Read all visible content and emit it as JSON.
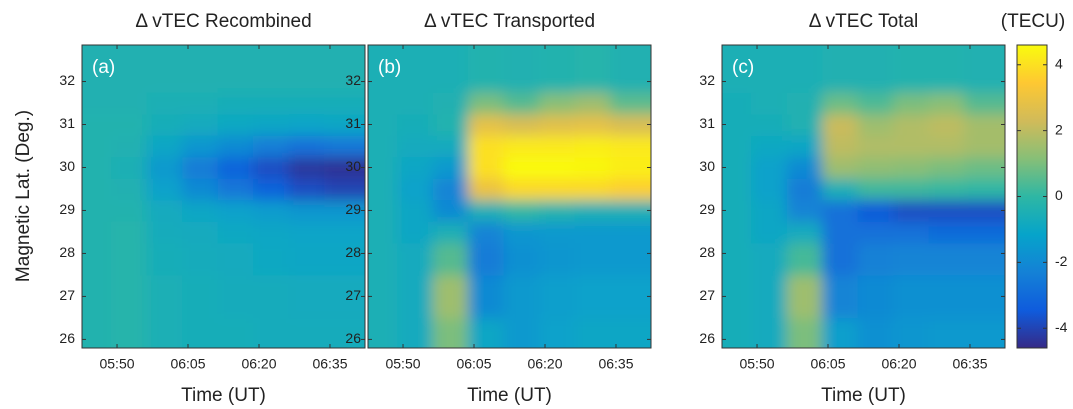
{
  "chart_data": [
    {
      "type": "heatmap",
      "title": "Δ vTEC Recombined",
      "panel_label": "(a)",
      "xlabel": "Time (UT)",
      "ylabel": "Magnetic Lat. (Deg.)",
      "x": [
        345,
        352.5,
        360,
        367.5,
        375,
        382.5,
        390,
        397.5
      ],
      "y": [
        26,
        27,
        28,
        28.5,
        29,
        29.5,
        30,
        30.5,
        31,
        31.5,
        32
      ],
      "z": [
        [
          -0.3,
          -0.2,
          -0.5,
          -0.6,
          -0.6,
          -0.7,
          -0.7,
          -0.7
        ],
        [
          -0.3,
          -0.2,
          -0.5,
          -0.6,
          -0.7,
          -0.7,
          -0.8,
          -0.8
        ],
        [
          -0.3,
          -0.2,
          -0.6,
          -0.7,
          -0.8,
          -0.9,
          -1,
          -1
        ],
        [
          -0.3,
          -0.2,
          -0.7,
          -0.8,
          -0.9,
          -1,
          -1.1,
          -1.1
        ],
        [
          -0.3,
          -0.3,
          -0.8,
          -1,
          -1.2,
          -1.4,
          -1.6,
          -1.6
        ],
        [
          -0.3,
          -0.4,
          -1.2,
          -2,
          -2.6,
          -3.2,
          -3.8,
          -4
        ],
        [
          -0.3,
          -0.5,
          -1.5,
          -2.5,
          -3.2,
          -3.8,
          -4.3,
          -4.4
        ],
        [
          -0.3,
          -0.4,
          -1,
          -1.6,
          -2,
          -2.4,
          -2.8,
          -2.6
        ],
        [
          -0.3,
          -0.3,
          -0.6,
          -0.8,
          -0.9,
          -1,
          -1.1,
          -1
        ],
        [
          -0.4,
          -0.4,
          -0.5,
          -0.5,
          -0.6,
          -0.6,
          -0.6,
          -0.6
        ],
        [
          -0.4,
          -0.4,
          -0.4,
          -0.4,
          -0.4,
          -0.4,
          -0.4,
          -0.4
        ]
      ],
      "xlim": [
        342.6,
        402.4
      ],
      "xticks": [
        {
          "value": 350,
          "label": "05:50"
        },
        {
          "value": 365,
          "label": "06:05"
        },
        {
          "value": 380,
          "label": "06:20"
        },
        {
          "value": 395,
          "label": "06:35"
        }
      ],
      "ylim": [
        25.8,
        32.85
      ],
      "yticks": [
        26,
        27,
        28,
        29,
        30,
        31,
        32
      ]
    },
    {
      "type": "heatmap",
      "title": "Δ vTEC Transported",
      "panel_label": "(b)",
      "xlabel": "Time (UT)",
      "x": [
        345,
        352.5,
        360,
        367.5,
        375,
        382.5,
        390,
        397.5
      ],
      "y": [
        26,
        27,
        28,
        28.5,
        29,
        29.5,
        30,
        30.5,
        31,
        31.5,
        32
      ],
      "z": [
        [
          -0.5,
          -0.8,
          1,
          -1,
          -1.5,
          -1.2,
          -1,
          -1
        ],
        [
          -0.5,
          -0.8,
          1.5,
          -2,
          -1.5,
          -1.3,
          -1.2,
          -1.2
        ],
        [
          -0.5,
          -0.8,
          0.5,
          -2.5,
          -1.8,
          -1.6,
          -1.5,
          -1.5
        ],
        [
          -0.5,
          -1,
          -0.5,
          -2.2,
          -1.6,
          -1.5,
          -1.5,
          -1.5
        ],
        [
          -0.5,
          -1,
          -2,
          -0.5,
          0,
          -0.3,
          -0.5,
          -0.5
        ],
        [
          -0.5,
          -1.2,
          -2.2,
          3,
          3.8,
          3.8,
          3.8,
          3.6
        ],
        [
          -0.5,
          -1,
          -1.5,
          4,
          4.6,
          4.6,
          4.5,
          4.3
        ],
        [
          -0.5,
          -0.8,
          -0.8,
          4,
          4.2,
          4.2,
          4.3,
          4.2
        ],
        [
          -0.5,
          -0.6,
          -0.3,
          2.8,
          2.5,
          2.7,
          2.8,
          2.5
        ],
        [
          -0.5,
          -0.5,
          -0.4,
          1,
          0.5,
          1.2,
          1.5,
          0.6
        ],
        [
          -0.5,
          -0.5,
          -0.5,
          -0.3,
          -0.4,
          -0.3,
          -0.2,
          -0.4
        ]
      ],
      "xlim": [
        342.6,
        402.4
      ],
      "xticks": [
        {
          "value": 350,
          "label": "05:50"
        },
        {
          "value": 365,
          "label": "06:05"
        },
        {
          "value": 380,
          "label": "06:20"
        },
        {
          "value": 395,
          "label": "06:35"
        }
      ],
      "ylim": [
        25.8,
        32.85
      ],
      "yticks": [
        26,
        27,
        28,
        29,
        30,
        31,
        32
      ]
    },
    {
      "type": "heatmap",
      "title": "Δ vTEC Total",
      "panel_label": "(c)",
      "xlabel": "Time (UT)",
      "x": [
        345,
        352.5,
        360,
        367.5,
        375,
        382.5,
        390,
        397.5
      ],
      "y": [
        26,
        27,
        28,
        28.5,
        29,
        29.5,
        30,
        30.5,
        31,
        31.5,
        32
      ],
      "z": [
        [
          -0.6,
          -0.8,
          1,
          -1.3,
          -1.8,
          -1.6,
          -1.5,
          -1.5
        ],
        [
          -0.6,
          -0.8,
          1.5,
          -2.2,
          -2,
          -1.8,
          -1.8,
          -1.8
        ],
        [
          -0.6,
          -0.8,
          0.3,
          -2.8,
          -2.3,
          -2.2,
          -2.2,
          -2.2
        ],
        [
          -0.6,
          -1,
          -0.8,
          -2.8,
          -2.8,
          -2.8,
          -3,
          -3
        ],
        [
          -0.6,
          -1,
          -2.2,
          -2.8,
          -3.5,
          -3.8,
          -3.8,
          -3.8
        ],
        [
          -0.6,
          -1.2,
          -2.5,
          -0.5,
          0.2,
          0.2,
          0.1,
          0
        ],
        [
          -0.6,
          -1.2,
          -2,
          1.5,
          1.3,
          1.2,
          1,
          0.8
        ],
        [
          -0.6,
          -0.9,
          -1,
          2,
          1.8,
          1.8,
          1.8,
          1.6
        ],
        [
          -0.6,
          -0.6,
          -0.4,
          2.2,
          1.5,
          1.8,
          2,
          1.6
        ],
        [
          -0.6,
          -0.5,
          -0.4,
          0.8,
          0.4,
          1,
          1.2,
          0.5
        ],
        [
          -0.5,
          -0.5,
          -0.5,
          -0.4,
          -0.4,
          -0.3,
          -0.3,
          -0.4
        ]
      ],
      "xlim": [
        342.6,
        402.4
      ],
      "xticks": [
        {
          "value": 350,
          "label": "05:50"
        },
        {
          "value": 365,
          "label": "06:05"
        },
        {
          "value": 380,
          "label": "06:20"
        },
        {
          "value": 395,
          "label": "06:35"
        }
      ],
      "ylim": [
        25.8,
        32.85
      ],
      "yticks": [
        26,
        27,
        28,
        29,
        30,
        31,
        32
      ]
    }
  ],
  "colorbar": {
    "label": "(TECU)",
    "lim": [
      -4.6,
      4.6
    ],
    "ticks": [
      -4,
      -2,
      0,
      2,
      4
    ],
    "colormap": [
      "#352a87",
      "#0f5cdd",
      "#1481d6",
      "#06a4ca",
      "#2eb7a4",
      "#87bf77",
      "#d1bb59",
      "#fec832",
      "#f9fb0e"
    ]
  }
}
